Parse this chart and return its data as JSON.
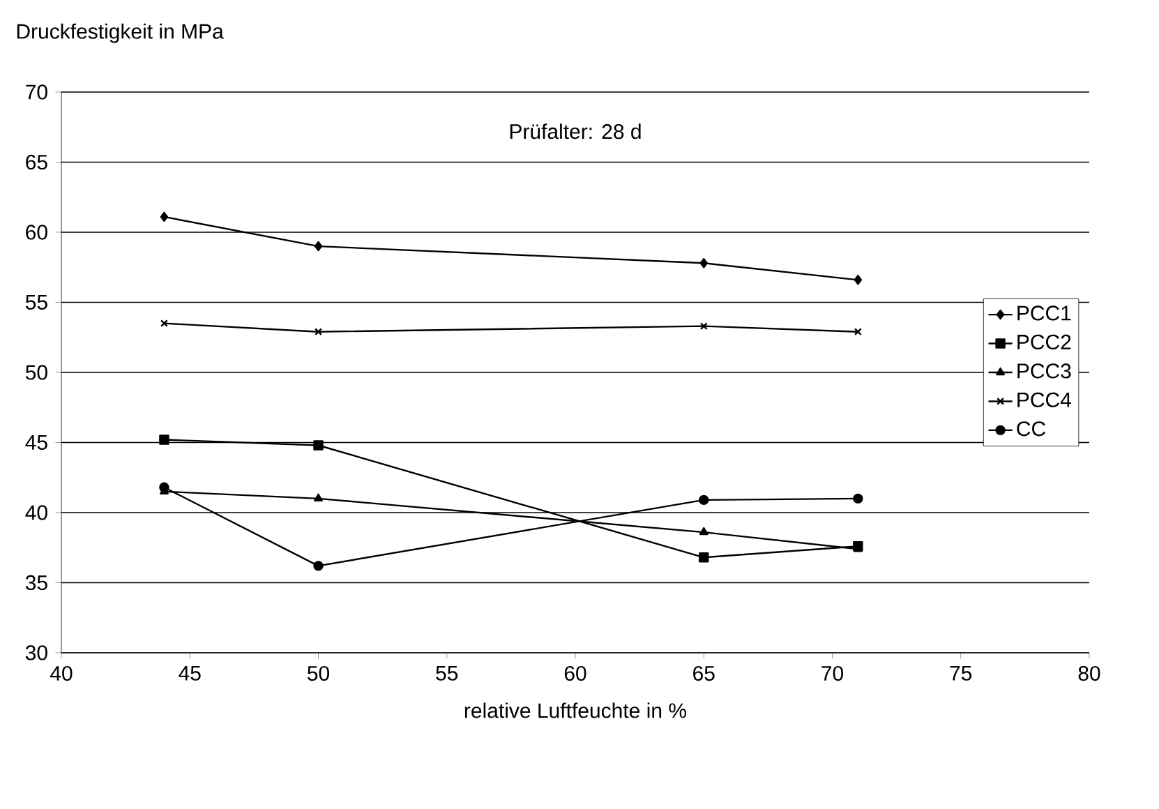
{
  "chart_data": {
    "type": "line",
    "ylabel": "Druckfestigkeit in MPa",
    "xlabel": "relative Luftfeuchte in %",
    "annotations": [
      "Prüfalter: 28 d"
    ],
    "x": [
      44,
      50,
      65,
      71
    ],
    "series": [
      {
        "name": "PCC1",
        "color": "#000000",
        "marker": "diamond",
        "values": [
          61.1,
          59.0,
          57.8,
          56.6
        ]
      },
      {
        "name": "PCC2",
        "color": "#000000",
        "marker": "square",
        "values": [
          45.2,
          44.8,
          36.8,
          37.6
        ]
      },
      {
        "name": "PCC3",
        "color": "#000000",
        "marker": "triangle",
        "values": [
          41.5,
          41.0,
          38.6,
          37.4
        ]
      },
      {
        "name": "PCC4",
        "color": "#000000",
        "marker": "cross",
        "values": [
          53.5,
          52.9,
          53.3,
          52.9
        ]
      },
      {
        "name": "CC",
        "color": "#000000",
        "marker": "circle",
        "values": [
          41.8,
          36.2,
          40.9,
          41.0
        ]
      }
    ],
    "xlim": [
      40,
      80
    ],
    "xticks": [
      40,
      45,
      50,
      55,
      60,
      65,
      70,
      75,
      80
    ],
    "ylim": [
      30,
      70
    ],
    "yticks": [
      30,
      35,
      40,
      45,
      50,
      55,
      60,
      65,
      70
    ],
    "grid": "y",
    "legend": "right",
    "line_style": "solid"
  }
}
